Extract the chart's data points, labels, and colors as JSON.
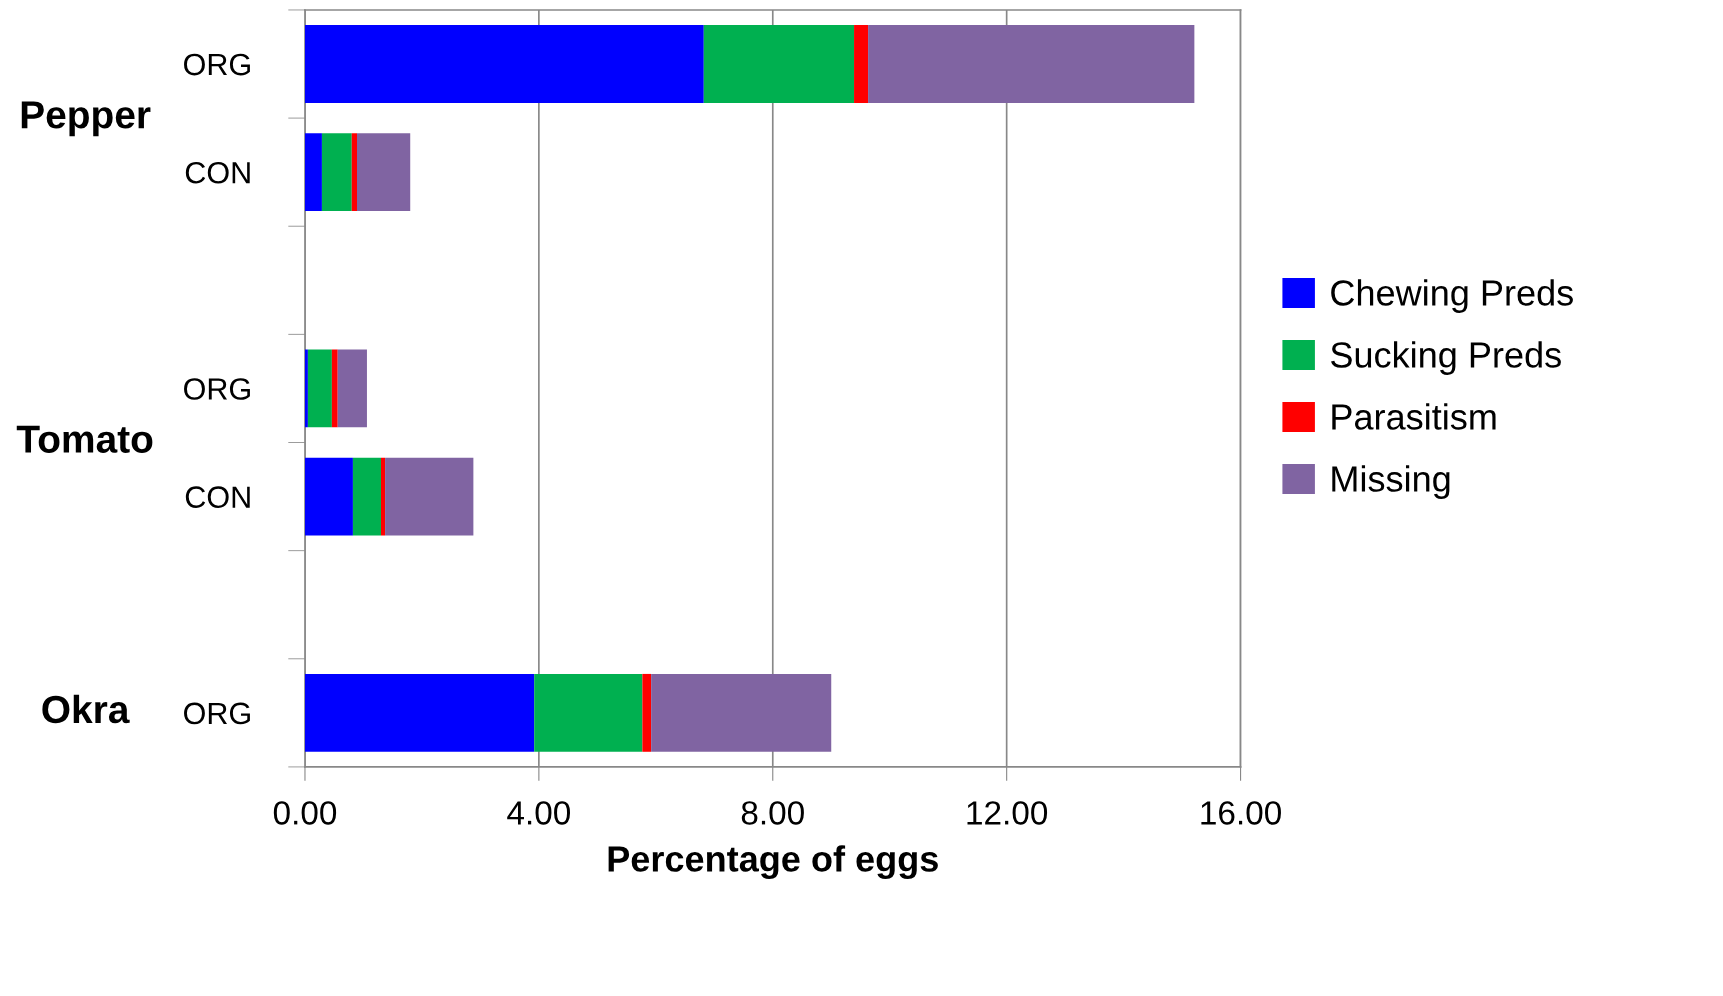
{
  "chart_data": {
    "type": "bar",
    "orientation": "horizontal",
    "stacked": true,
    "xlabel": "Percentage of eggs",
    "categories": [
      "ORG",
      "CON",
      null,
      "ORG",
      "CON",
      null,
      "ORG"
    ],
    "series": [
      {
        "name": "Chewing Preds",
        "color": "#0000ff",
        "values": [
          6.82,
          0.29,
          null,
          0.05,
          0.82,
          null,
          3.92
        ]
      },
      {
        "name": "Sucking Preds",
        "color": "#00b050",
        "values": [
          2.57,
          0.51,
          null,
          0.41,
          0.48,
          null,
          1.85
        ]
      },
      {
        "name": "Parasitism",
        "color": "#ff0000",
        "values": [
          0.24,
          0.09,
          null,
          0.1,
          0.07,
          null,
          0.15
        ]
      },
      {
        "name": "Missing",
        "color": "#8064a2",
        "values": [
          5.58,
          0.91,
          null,
          0.5,
          1.51,
          null,
          3.08
        ]
      }
    ],
    "xlim": [
      0,
      16
    ],
    "xticks": [
      {
        "value": 0,
        "label": "0.00"
      },
      {
        "value": 4,
        "label": "4.00"
      },
      {
        "value": 8,
        "label": "8.00"
      },
      {
        "value": 12,
        "label": "12.00"
      },
      {
        "value": 16,
        "label": "16.00"
      }
    ],
    "grid": "x",
    "legend": "right",
    "annotations": [
      "Pepper",
      "Tomato",
      "Okra"
    ]
  }
}
